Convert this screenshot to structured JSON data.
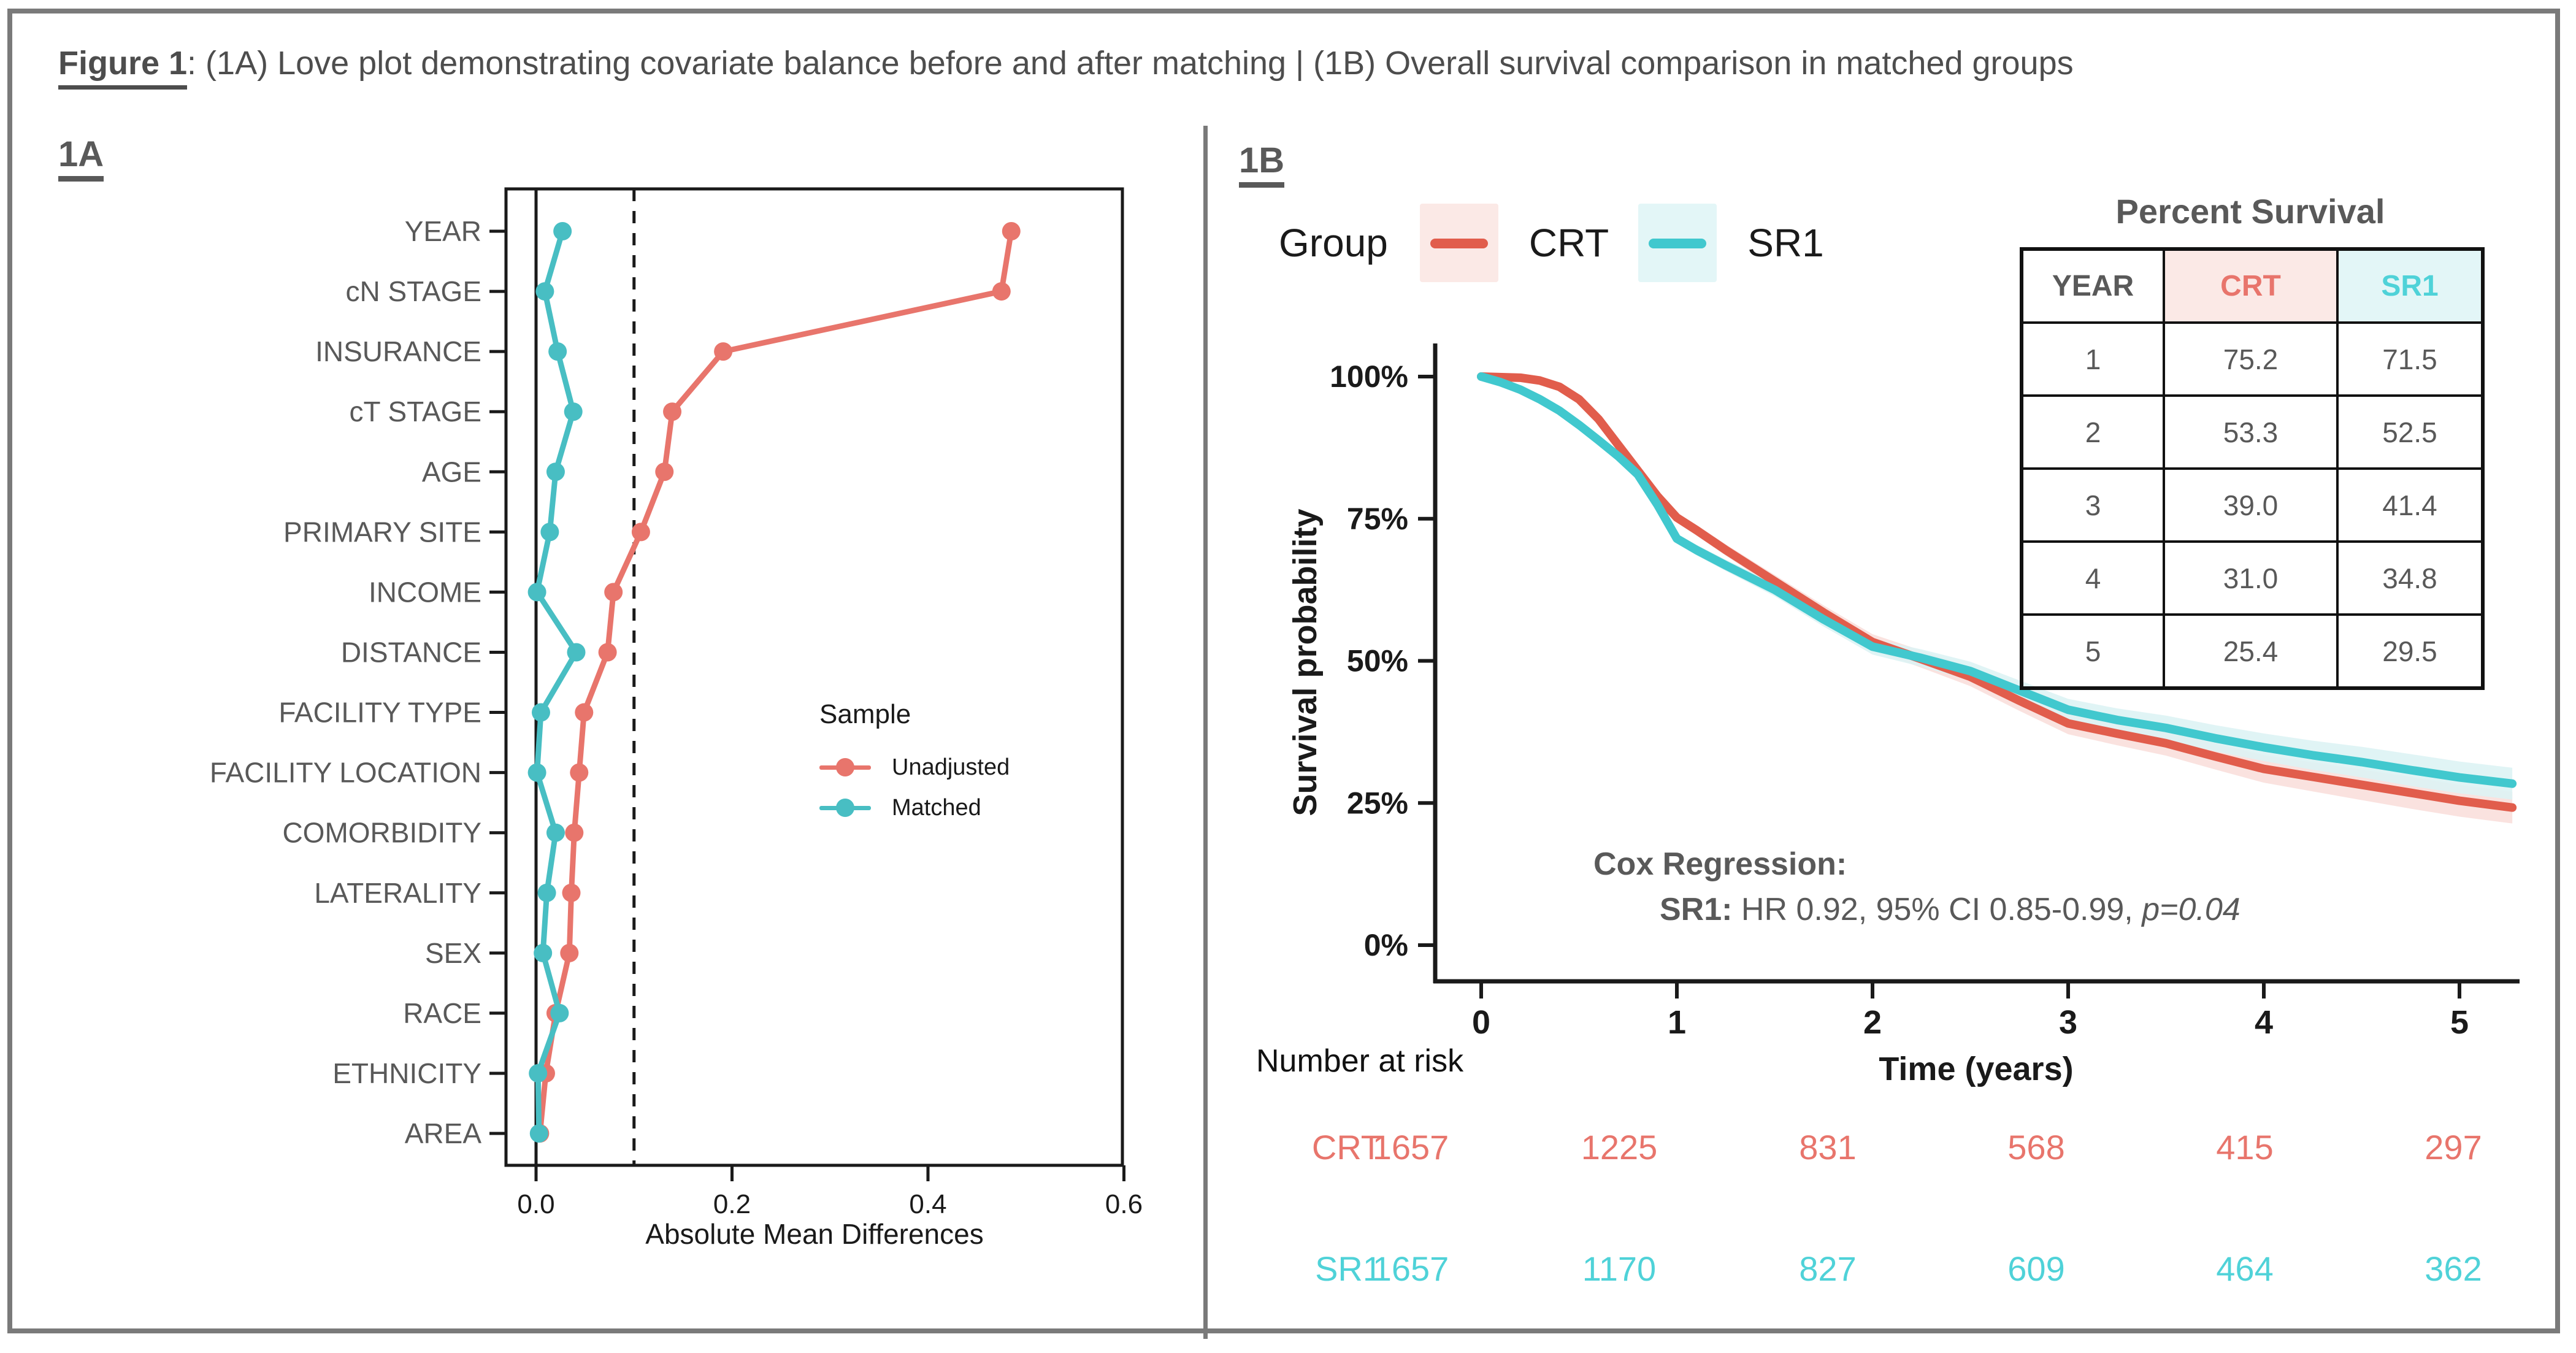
{
  "header": {
    "figure_label": "Figure 1",
    "title_rest": ": (1A) Love plot demonstrating covariate balance before and after matching | (1B) Overall survival comparison in matched groups"
  },
  "panels": {
    "a_label": "1A",
    "b_label": "1B"
  },
  "legendB": {
    "title": "Group"
  },
  "annotations": {
    "cox_heading": "Cox Regression:",
    "cox_group": "SR1:",
    "cox_body": " HR 0.92, 95% CI 0.85-0.99, ",
    "cox_p": "p=0.04"
  },
  "colors": {
    "salmon": "#E8756C",
    "teal": "#48BEC3",
    "crt_curve": "#E15D4C",
    "sr1_curve": "#41C8CE",
    "crt_ribbon": "#F9DFDB",
    "sr1_ribbon": "#DDF3F4",
    "crt_header_bg": "#FBE9E6",
    "sr1_header_bg": "#E3F6F7",
    "crt_text": "#E8756C",
    "sr1_text": "#4FD2D8",
    "gray_text": "#595959",
    "axis_black": "#1a1a1a",
    "border_gray": "#7a7a7a"
  },
  "chart_data": [
    {
      "type": "scatter",
      "id": "love_plot",
      "xlabel": "Absolute Mean Differences",
      "legend_title": "Sample",
      "x_ticks": [
        0.0,
        0.2,
        0.4,
        0.6
      ],
      "xlim": [
        -0.03,
        0.6
      ],
      "zero_line": 0.0,
      "threshold_line": 0.1,
      "categories": [
        "YEAR",
        "cN STAGE",
        "INSURANCE",
        "cT STAGE",
        "AGE",
        "PRIMARY SITE",
        "INCOME",
        "DISTANCE",
        "FACILITY TYPE",
        "FACILITY LOCATION",
        "COMORBIDITY",
        "LATERALITY",
        "SEX",
        "RACE",
        "ETHNICITY",
        "AREA"
      ],
      "series": [
        {
          "name": "Unadjusted",
          "color_key": "salmon",
          "values": [
            0.485,
            0.475,
            0.191,
            0.139,
            0.131,
            0.107,
            0.079,
            0.073,
            0.049,
            0.044,
            0.039,
            0.036,
            0.034,
            0.02,
            0.01,
            0.004
          ]
        },
        {
          "name": "Matched",
          "color_key": "teal",
          "values": [
            0.027,
            0.009,
            0.022,
            0.038,
            0.02,
            0.014,
            0.001,
            0.041,
            0.005,
            0.001,
            0.02,
            0.011,
            0.007,
            0.024,
            0.002,
            0.003
          ]
        }
      ]
    },
    {
      "type": "line",
      "id": "km_plot",
      "xlabel": "Time (years)",
      "ylabel": "Survival probability",
      "x_ticks": [
        0,
        1,
        2,
        3,
        4,
        5
      ],
      "y_ticks": [
        {
          "label": "0%",
          "value": 0
        },
        {
          "label": "25%",
          "value": 25
        },
        {
          "label": "50%",
          "value": 50
        },
        {
          "label": "75%",
          "value": 75
        },
        {
          "label": "100%",
          "value": 100
        }
      ],
      "xlim": [
        0,
        5.27
      ],
      "ylim": [
        0,
        100
      ],
      "series": [
        {
          "name": "CRT",
          "color_key": "crt_curve",
          "ribbon_key": "crt_ribbon",
          "x": [
            0,
            0.2,
            0.3,
            0.4,
            0.5,
            0.6,
            0.7,
            0.8,
            0.9,
            1.0,
            1.1,
            1.25,
            1.5,
            1.75,
            2.0,
            2.25,
            2.5,
            2.75,
            3.0,
            3.25,
            3.5,
            3.75,
            4.0,
            4.25,
            4.5,
            4.75,
            5.0,
            5.27
          ],
          "y": [
            100,
            99.8,
            99.3,
            98.2,
            96.0,
            92.5,
            88.0,
            83.5,
            79.0,
            75.2,
            73.0,
            69.5,
            64.0,
            58.5,
            53.3,
            50.3,
            47.2,
            43.0,
            39.0,
            37.2,
            35.5,
            33.2,
            31.0,
            29.6,
            28.2,
            26.8,
            25.4,
            24.2
          ]
        },
        {
          "name": "SR1",
          "color_key": "sr1_curve",
          "ribbon_key": "sr1_ribbon",
          "x": [
            0,
            0.1,
            0.2,
            0.3,
            0.4,
            0.5,
            0.6,
            0.7,
            0.8,
            0.9,
            1.0,
            1.1,
            1.25,
            1.5,
            1.75,
            2.0,
            2.25,
            2.5,
            2.75,
            3.0,
            3.25,
            3.5,
            3.75,
            4.0,
            4.25,
            4.5,
            4.75,
            5.0,
            5.27
          ],
          "y": [
            100,
            99.0,
            97.7,
            96.0,
            94.0,
            91.5,
            88.8,
            86.0,
            82.8,
            77.5,
            71.5,
            69.5,
            66.8,
            62.5,
            57.3,
            52.5,
            50.5,
            48.2,
            44.8,
            41.4,
            39.6,
            38.2,
            36.4,
            34.8,
            33.4,
            32.2,
            30.8,
            29.5,
            28.4
          ]
        }
      ]
    },
    {
      "type": "table",
      "id": "percent_survival",
      "title": "Percent Survival",
      "columns": [
        "YEAR",
        "CRT",
        "SR1"
      ],
      "rows": [
        [
          "1",
          "75.2",
          "71.5"
        ],
        [
          "2",
          "53.3",
          "52.5"
        ],
        [
          "3",
          "39.0",
          "41.4"
        ],
        [
          "4",
          "31.0",
          "34.8"
        ],
        [
          "5",
          "25.4",
          "29.5"
        ]
      ]
    },
    {
      "type": "table",
      "id": "number_at_risk",
      "title": "Number at risk",
      "time_points": [
        0,
        1,
        2,
        3,
        4,
        5
      ],
      "rows": [
        {
          "name": "CRT",
          "color_key": "crt_text",
          "values": [
            1657,
            1225,
            831,
            568,
            415,
            297
          ]
        },
        {
          "name": "SR1",
          "color_key": "sr1_text",
          "values": [
            1657,
            1170,
            827,
            609,
            464,
            362
          ]
        }
      ]
    }
  ]
}
